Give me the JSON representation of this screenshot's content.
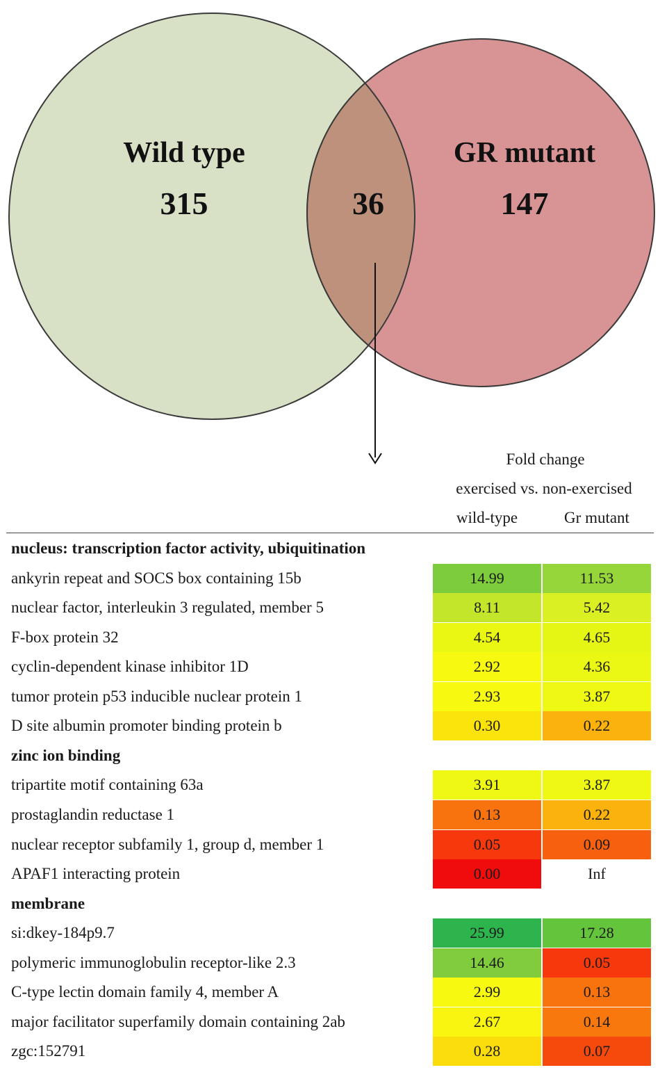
{
  "venn": {
    "left": {
      "label": "Wild type",
      "count": "315",
      "color": "#d8e0c6"
    },
    "right": {
      "label": "GR mutant",
      "count": "147",
      "color": "#d89494"
    },
    "overlap": {
      "count": "36",
      "color": "#be917d"
    }
  },
  "table": {
    "header": {
      "line1": "Fold change",
      "line2": "exercised vs. non-exercised",
      "col1": "wild-type",
      "col2": "Gr mutant"
    },
    "groups": [
      {
        "name": "nucleus: transcription factor activity, ubiquitination",
        "rows": [
          {
            "gene": "ankyrin repeat and SOCS box containing 15b",
            "wt": "14.99",
            "wt_color": "#7ccc3c",
            "gr": "11.53",
            "gr_color": "#97d63a"
          },
          {
            "gene": "nuclear factor, interleukin 3 regulated, member 5",
            "wt": "8.11",
            "wt_color": "#c4e62a",
            "gr": "5.42",
            "gr_color": "#daf022"
          },
          {
            "gene": "F-box protein 32",
            "wt": "4.54",
            "wt_color": "#e9f712",
            "gr": "4.65",
            "gr_color": "#e6f614"
          },
          {
            "gene": "cyclin-dependent kinase inhibitor 1D",
            "wt": "2.92",
            "wt_color": "#f7fa10",
            "gr": "4.36",
            "gr_color": "#ebf814"
          },
          {
            "gene": "tumor protein p53 inducible nuclear protein 1",
            "wt": "2.93",
            "wt_color": "#f7fa10",
            "gr": "3.87",
            "gr_color": "#eff812"
          },
          {
            "gene": "D site albumin promoter binding protein b",
            "wt": "0.30",
            "wt_color": "#fbe40c",
            "gr": "0.22",
            "gr_color": "#fbb20c"
          }
        ]
      },
      {
        "name": "zinc ion binding",
        "rows": [
          {
            "gene": "tripartite motif containing 63a",
            "wt": "3.91",
            "wt_color": "#eff812",
            "gr": "3.87",
            "gr_color": "#eff812"
          },
          {
            "gene": "prostaglandin reductase 1",
            "wt": "0.13",
            "wt_color": "#f8720e",
            "gr": "0.22",
            "gr_color": "#fbb20c"
          },
          {
            "gene": "nuclear receptor subfamily 1, group d, member 1",
            "wt": "0.05",
            "wt_color": "#f6380c",
            "gr": "0.09",
            "gr_color": "#f6600e"
          },
          {
            "gene": "APAF1 interacting protein",
            "wt": "0.00",
            "wt_color": "#f00c0c",
            "gr": "Inf",
            "gr_color": "#ffffff"
          }
        ]
      },
      {
        "name": "membrane",
        "rows": [
          {
            "gene": "si:dkey-184p9.7",
            "wt": "25.99",
            "wt_color": "#2eb44c",
            "gr": "17.28",
            "gr_color": "#64c43c"
          },
          {
            "gene": "polymeric immunoglobulin receptor-like 2.3",
            "wt": "14.46",
            "wt_color": "#80cc3c",
            "gr": "0.05",
            "gr_color": "#f6380c"
          },
          {
            "gene": "C-type lectin domain family 4, member A",
            "wt": "2.99",
            "wt_color": "#f7fa10",
            "gr": "0.13",
            "gr_color": "#f8720e"
          },
          {
            "gene": "major facilitator superfamily domain containing 2ab",
            "wt": "2.67",
            "wt_color": "#f9f410",
            "gr": "0.14",
            "gr_color": "#f8780e"
          },
          {
            "gene": "zgc:152791",
            "wt": "0.28",
            "wt_color": "#fbdc0c",
            "gr": "0.07",
            "gr_color": "#f64a0c"
          }
        ]
      }
    ]
  }
}
